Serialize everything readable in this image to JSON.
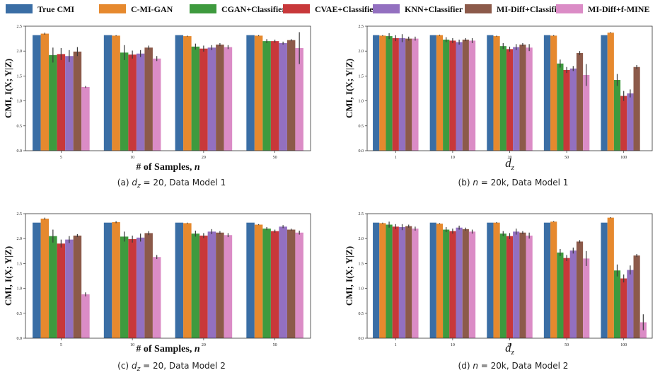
{
  "legend": {
    "entries": [
      {
        "name": "True CMI",
        "color": "#3a6ea5"
      },
      {
        "name": "C-MI-GAN",
        "color": "#e6892e"
      },
      {
        "name": "CGAN+Classifier",
        "color": "#3e9a3e"
      },
      {
        "name": "CVAE+Classifier",
        "color": "#c8383a"
      },
      {
        "name": "KNN+Classifier",
        "color": "#9370c0"
      },
      {
        "name": "MI-Diff+Classifier",
        "color": "#8c5a4a"
      },
      {
        "name": "MI-Diff+f-MINE",
        "color": "#db8cc6"
      }
    ]
  },
  "chart_data": [
    {
      "type": "bar",
      "caption": "(a) d_z = 20, Data Model 1",
      "caption_parts": [
        "(a) ",
        "d",
        "z",
        " = 20, Data Model 1"
      ],
      "xlabel": "# of Samples, ",
      "xlabel_var": "n",
      "xlabel_sub": "",
      "ylabel": "CMI, I(X; Y|Z)",
      "ylim": [
        0,
        2.5
      ],
      "yticks": [
        "0.0",
        "0.5",
        "1.0",
        "1.5",
        "2.0",
        "2.5"
      ],
      "categories": [
        "5",
        "10",
        "20",
        "50"
      ],
      "series": [
        {
          "name": "True CMI",
          "values": [
            2.32,
            2.32,
            2.32,
            2.32
          ],
          "errors": [
            0,
            0,
            0,
            0
          ]
        },
        {
          "name": "C-MI-GAN",
          "values": [
            2.35,
            2.31,
            2.3,
            2.31
          ],
          "errors": [
            0.02,
            0.01,
            0.01,
            0.01
          ]
        },
        {
          "name": "CGAN+Classifier",
          "values": [
            1.92,
            1.97,
            2.09,
            2.2
          ],
          "errors": [
            0.15,
            0.15,
            0.06,
            0.04
          ]
        },
        {
          "name": "CVAE+Classifier",
          "values": [
            1.94,
            1.93,
            2.05,
            2.2
          ],
          "errors": [
            0.12,
            0.08,
            0.06,
            0.03
          ]
        },
        {
          "name": "KNN+Classifier",
          "values": [
            1.9,
            1.95,
            2.07,
            2.16
          ],
          "errors": [
            0.12,
            0.07,
            0.05,
            0.03
          ]
        },
        {
          "name": "MI-Diff+Classifier",
          "values": [
            1.99,
            2.07,
            2.13,
            2.22
          ],
          "errors": [
            0.09,
            0.04,
            0.03,
            0.02
          ]
        },
        {
          "name": "MI-Diff+f-MINE",
          "values": [
            1.28,
            1.85,
            2.08,
            2.06
          ],
          "errors": [
            0.02,
            0.05,
            0.04,
            0.32
          ]
        }
      ]
    },
    {
      "type": "bar",
      "caption": "(b) n = 20k, Data Model 1",
      "caption_parts": [
        "(b) ",
        "n",
        "",
        " = 20k, Data Model 1"
      ],
      "xlabel": "",
      "xlabel_var": "d",
      "xlabel_sub": "z",
      "ylabel": "CMI, I(X; Y|Z)",
      "ylim": [
        0,
        2.5
      ],
      "yticks": [
        "0.0",
        "0.5",
        "1.0",
        "1.5",
        "2.0",
        "2.5"
      ],
      "categories": [
        "1",
        "10",
        "20",
        "50",
        "100"
      ],
      "series": [
        {
          "name": "True CMI",
          "values": [
            2.32,
            2.32,
            2.32,
            2.32,
            2.32
          ],
          "errors": [
            0,
            0,
            0,
            0,
            0
          ]
        },
        {
          "name": "C-MI-GAN",
          "values": [
            2.31,
            2.32,
            2.3,
            2.31,
            2.37
          ],
          "errors": [
            0.01,
            0.01,
            0.01,
            0.01,
            0.01
          ]
        },
        {
          "name": "CGAN+Classifier",
          "values": [
            2.3,
            2.23,
            2.1,
            1.75,
            1.42
          ],
          "errors": [
            0.06,
            0.05,
            0.06,
            0.08,
            0.12
          ]
        },
        {
          "name": "CVAE+Classifier",
          "values": [
            2.26,
            2.21,
            2.04,
            1.62,
            1.1
          ],
          "errors": [
            0.06,
            0.05,
            0.05,
            0.06,
            0.1
          ]
        },
        {
          "name": "KNN+Classifier",
          "values": [
            2.26,
            2.18,
            2.08,
            1.65,
            1.15
          ],
          "errors": [
            0.08,
            0.05,
            0.06,
            0.05,
            0.08
          ]
        },
        {
          "name": "MI-Diff+Classifier",
          "values": [
            2.25,
            2.23,
            2.13,
            1.96,
            1.68
          ],
          "errors": [
            0.04,
            0.03,
            0.03,
            0.04,
            0.04
          ]
        },
        {
          "name": "MI-Diff+f-MINE",
          "values": [
            2.25,
            2.21,
            2.07,
            1.52,
            0.0
          ],
          "errors": [
            0.04,
            0.05,
            0.07,
            0.22,
            0.0
          ]
        }
      ]
    },
    {
      "type": "bar",
      "caption": "(c) d_z = 20, Data Model 2",
      "caption_parts": [
        "(c) ",
        "d",
        "z",
        " = 20, Data Model 2"
      ],
      "xlabel": "# of Samples, ",
      "xlabel_var": "n",
      "xlabel_sub": "",
      "ylabel": "CMI, I(X; Y|Z)",
      "ylim": [
        0,
        2.5
      ],
      "yticks": [
        "0.0",
        "0.5",
        "1.0",
        "1.5",
        "2.0",
        "2.5"
      ],
      "categories": [
        "5",
        "10",
        "20",
        "50"
      ],
      "series": [
        {
          "name": "True CMI",
          "values": [
            2.32,
            2.32,
            2.32,
            2.32
          ],
          "errors": [
            0,
            0,
            0,
            0
          ]
        },
        {
          "name": "C-MI-GAN",
          "values": [
            2.4,
            2.33,
            2.31,
            2.28
          ],
          "errors": [
            0.02,
            0.02,
            0.01,
            0.01
          ]
        },
        {
          "name": "CGAN+Classifier",
          "values": [
            2.05,
            2.04,
            2.1,
            2.2
          ],
          "errors": [
            0.13,
            0.1,
            0.06,
            0.03
          ]
        },
        {
          "name": "CVAE+Classifier",
          "values": [
            1.9,
            1.99,
            2.06,
            2.15
          ],
          "errors": [
            0.08,
            0.07,
            0.05,
            0.03
          ]
        },
        {
          "name": "KNN+Classifier",
          "values": [
            1.98,
            2.02,
            2.14,
            2.24
          ],
          "errors": [
            0.07,
            0.08,
            0.05,
            0.03
          ]
        },
        {
          "name": "MI-Diff+Classifier",
          "values": [
            2.06,
            2.11,
            2.12,
            2.18
          ],
          "errors": [
            0.03,
            0.04,
            0.03,
            0.02
          ]
        },
        {
          "name": "MI-Diff+f-MINE",
          "values": [
            0.88,
            1.63,
            2.07,
            2.12
          ],
          "errors": [
            0.04,
            0.04,
            0.04,
            0.04
          ]
        }
      ]
    },
    {
      "type": "bar",
      "caption": "(d) n = 20k, Data Model 2",
      "caption_parts": [
        "(d) ",
        "n",
        "",
        " = 20k, Data Model 2"
      ],
      "xlabel": "",
      "xlabel_var": "d",
      "xlabel_sub": "z",
      "ylabel": "CMI, I(X; Y|Z)",
      "ylim": [
        0,
        2.5
      ],
      "yticks": [
        "0.0",
        "0.5",
        "1.0",
        "1.5",
        "2.0",
        "2.5"
      ],
      "categories": [
        "1",
        "10",
        "20",
        "50",
        "100"
      ],
      "series": [
        {
          "name": "True CMI",
          "values": [
            2.32,
            2.32,
            2.32,
            2.32,
            2.32
          ],
          "errors": [
            0,
            0,
            0,
            0,
            0
          ]
        },
        {
          "name": "C-MI-GAN",
          "values": [
            2.31,
            2.3,
            2.32,
            2.34,
            2.42
          ],
          "errors": [
            0.01,
            0.01,
            0.01,
            0.01,
            0.01
          ]
        },
        {
          "name": "CGAN+Classifier",
          "values": [
            2.28,
            2.18,
            2.1,
            1.72,
            1.36
          ],
          "errors": [
            0.06,
            0.05,
            0.05,
            0.07,
            0.12
          ]
        },
        {
          "name": "CVAE+Classifier",
          "values": [
            2.24,
            2.15,
            2.05,
            1.61,
            1.2
          ],
          "errors": [
            0.05,
            0.05,
            0.06,
            0.06,
            0.08
          ]
        },
        {
          "name": "KNN+Classifier",
          "values": [
            2.23,
            2.22,
            2.14,
            1.76,
            1.37
          ],
          "errors": [
            0.06,
            0.04,
            0.06,
            0.06,
            0.09
          ]
        },
        {
          "name": "MI-Diff+Classifier",
          "values": [
            2.25,
            2.19,
            2.12,
            1.94,
            1.66
          ],
          "errors": [
            0.03,
            0.03,
            0.03,
            0.03,
            0.03
          ]
        },
        {
          "name": "MI-Diff+f-MINE",
          "values": [
            2.2,
            2.14,
            2.06,
            1.6,
            0.32
          ],
          "errors": [
            0.04,
            0.04,
            0.06,
            0.15,
            0.16
          ]
        }
      ]
    }
  ]
}
